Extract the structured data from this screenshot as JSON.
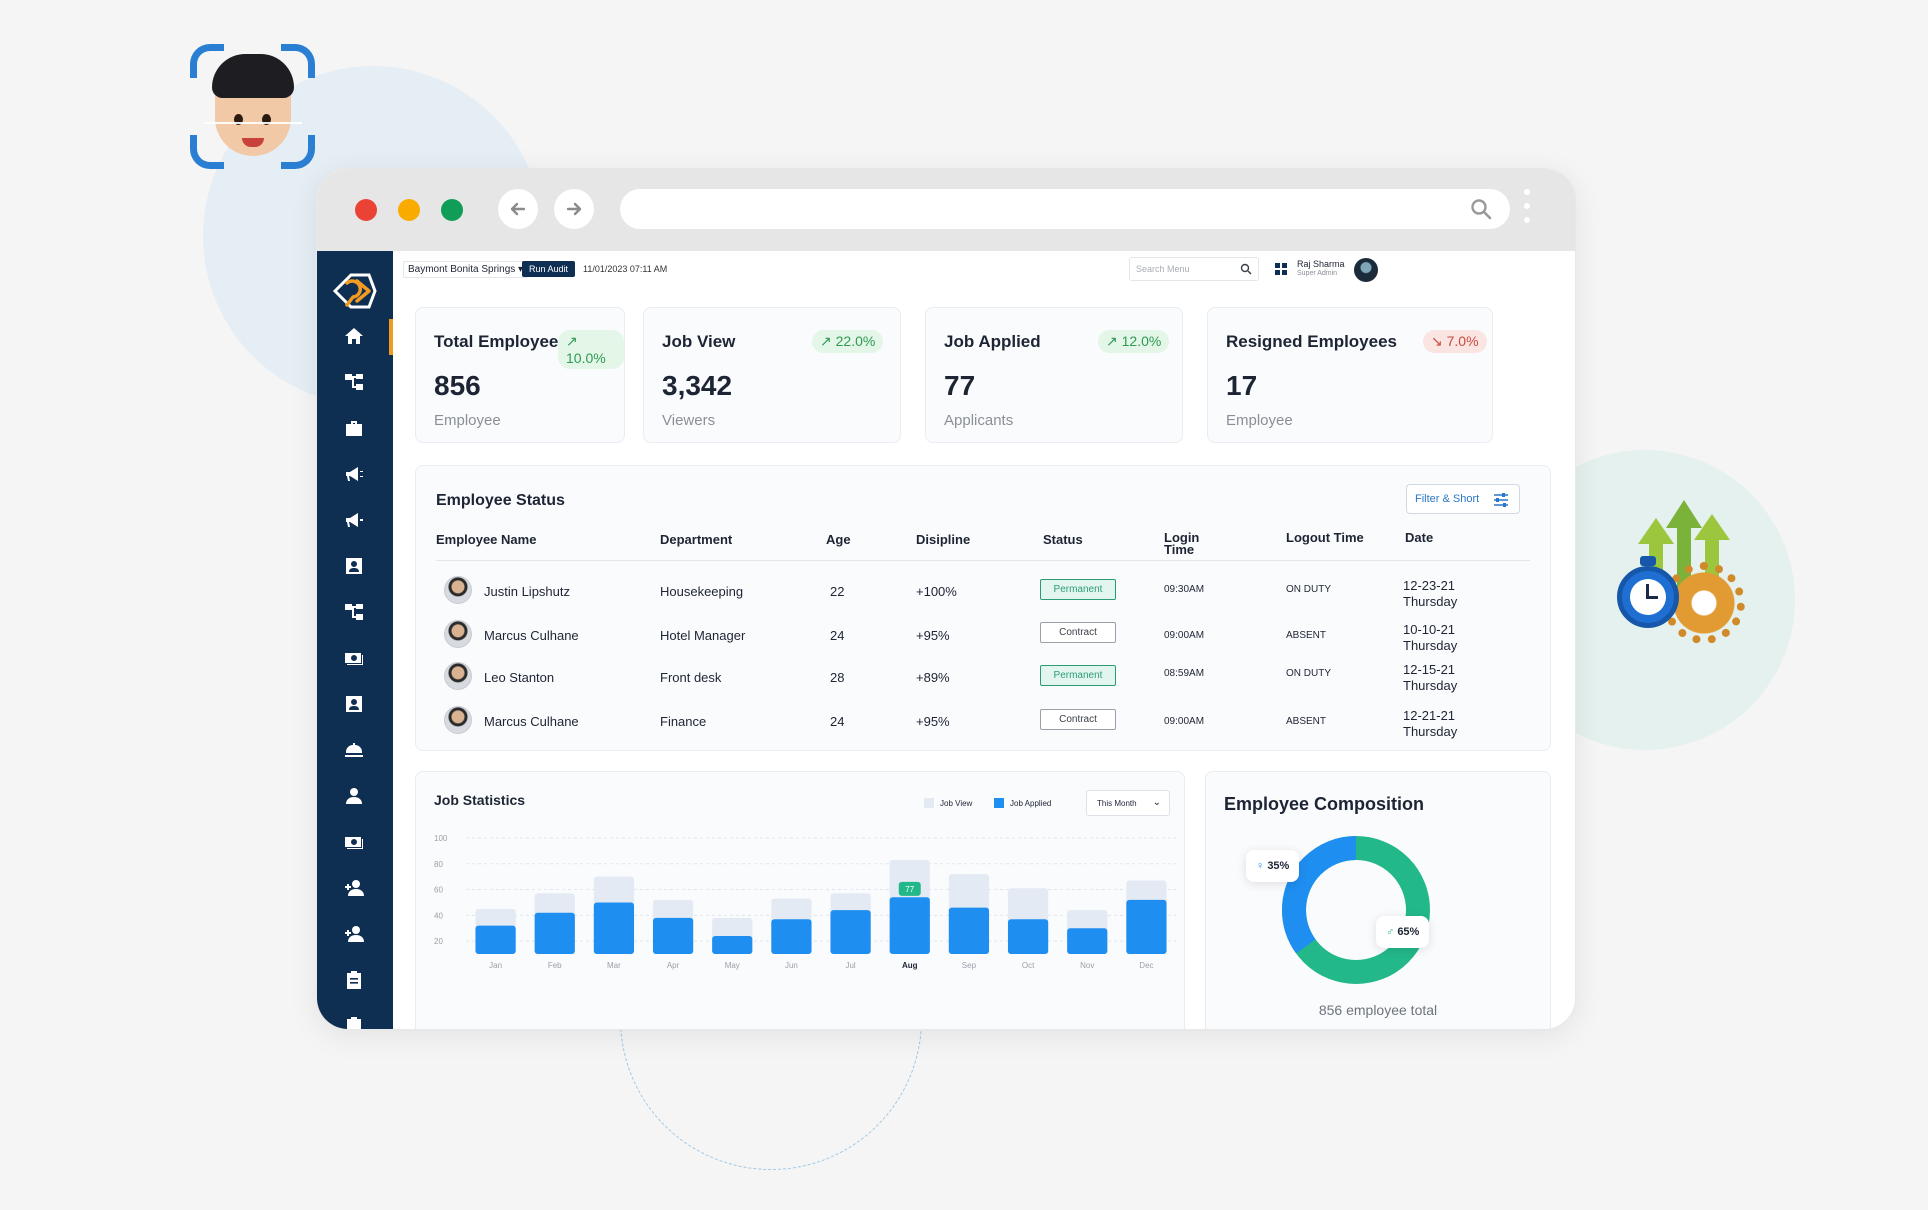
{
  "topbar": {
    "location": "Baymont Bonita Springs",
    "run_audit": "Run Audit",
    "datetime": "11/01/2023 07:11 AM",
    "search_placeholder": "Search Menu",
    "user_name": "Raj Sharma",
    "user_role": "Super Admin"
  },
  "stats": [
    {
      "title": "Total Employees",
      "badge": "10.0%",
      "trend": "up",
      "value": "856",
      "sub": "Employee"
    },
    {
      "title": "Job View",
      "badge": "22.0%",
      "trend": "up",
      "value": "3,342",
      "sub": "Viewers"
    },
    {
      "title": "Job Applied",
      "badge": "12.0%",
      "trend": "up",
      "value": "77",
      "sub": "Applicants"
    },
    {
      "title": "Resigned Employees",
      "badge": "7.0%",
      "trend": "down",
      "value": "17",
      "sub": "Employee"
    }
  ],
  "employee_status": {
    "title": "Employee Status",
    "filter_label": "Filter & Short",
    "headers": [
      "Employee Name",
      "Department",
      "Age",
      "Disipline",
      "Status",
      "Login Time",
      "Logout Time",
      "Date"
    ],
    "rows": [
      {
        "name": "Justin Lipshutz",
        "department": "Housekeeping",
        "age": "22",
        "discipline": "+100%",
        "status": "Permanent",
        "login": "09:30AM",
        "logout": "ON DUTY",
        "date": "12-23-21",
        "day": "Thursday"
      },
      {
        "name": "Marcus Culhane",
        "department": "Hotel Manager",
        "age": "24",
        "discipline": "+95%",
        "status": "Contract",
        "login": "09:00AM",
        "logout": "ABSENT",
        "date": "10-10-21",
        "day": "Thursday"
      },
      {
        "name": "Leo Stanton",
        "department": "Front desk",
        "age": "28",
        "discipline": "+89%",
        "status": "Permanent",
        "login": "08:59AM",
        "logout": "ON DUTY",
        "date": "12-15-21",
        "day": "Thursday"
      },
      {
        "name": "Marcus Culhane",
        "department": "Finance",
        "age": "24",
        "discipline": "+95%",
        "status": "Contract",
        "login": "09:00AM",
        "logout": "ABSENT",
        "date": "12-21-21",
        "day": "Thursday"
      }
    ]
  },
  "job_statistics": {
    "title": "Job Statistics",
    "legend_view": "Job View",
    "legend_applied": "Job Applied",
    "period": "This Month",
    "colors": {
      "view": "#e3eaf3",
      "applied": "#1f8ef1"
    }
  },
  "chart_data": {
    "type": "bar",
    "categories": [
      "Jan",
      "Feb",
      "Mar",
      "Apr",
      "May",
      "Jun",
      "Jul",
      "Aug",
      "Sep",
      "Oct",
      "Nov",
      "Dec"
    ],
    "series": [
      {
        "name": "Job View",
        "values": [
          45,
          57,
          70,
          52,
          38,
          53,
          57,
          83,
          72,
          61,
          44,
          67
        ]
      },
      {
        "name": "Job Applied",
        "values": [
          32,
          42,
          50,
          38,
          24,
          37,
          44,
          54,
          46,
          37,
          30,
          52
        ]
      }
    ],
    "y_ticks": [
      100,
      80,
      60,
      40,
      20
    ],
    "ylim": [
      10,
      100
    ],
    "highlight": {
      "category": "Aug",
      "label": "77"
    }
  },
  "composition": {
    "title": "Employee Composition",
    "female_pct": "35%",
    "male_pct": "65%",
    "female_value": 35,
    "male_value": 65,
    "total_label": "856 employee total",
    "colors": {
      "female": "#1f8ef1",
      "male": "#22b88a"
    }
  }
}
